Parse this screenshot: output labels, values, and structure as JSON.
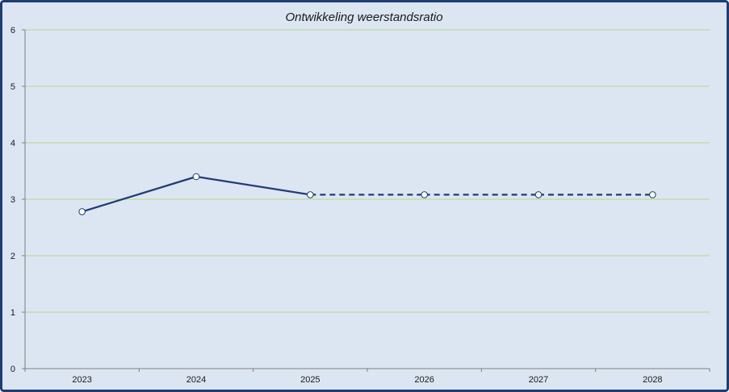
{
  "chart_data": {
    "type": "line",
    "title": "Ontwikkeling weerstandsratio",
    "xlabel": "",
    "ylabel": "",
    "categories": [
      "2023",
      "2024",
      "2025",
      "2026",
      "2027",
      "2028"
    ],
    "series": [
      {
        "values": [
          2.78,
          3.4,
          3.08,
          3.08,
          3.08,
          3.08
        ],
        "line_style_by_segment": [
          "solid",
          "solid",
          "dashed",
          "dashed",
          "dashed"
        ],
        "color": "#1f3c74",
        "marker": "open-circle"
      }
    ],
    "ylim": [
      0,
      6
    ],
    "yticks": [
      "0",
      "1",
      "2",
      "3",
      "4",
      "5",
      "6"
    ],
    "grid": true,
    "legend": "none",
    "colors": {
      "background": "#dce6f2",
      "frame_border": "#1f3c74",
      "gridline": "#b8d48c",
      "axis": "#7f7f7f"
    }
  }
}
